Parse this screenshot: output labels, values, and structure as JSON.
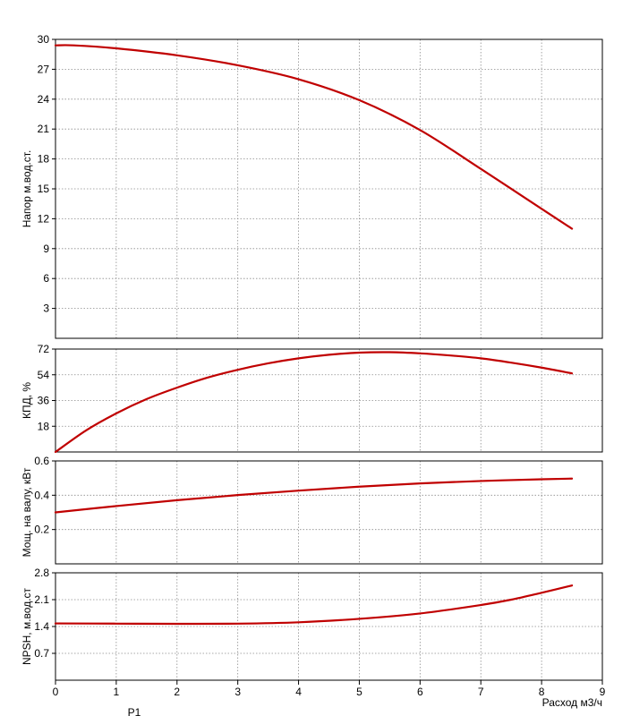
{
  "chart_data": [
    {
      "type": "line",
      "ylabel": "Напор м.вод.ст.",
      "xlim": [
        0,
        9
      ],
      "ylim": [
        0,
        30
      ],
      "yticks": [
        "3",
        "6",
        "9",
        "12",
        "15",
        "18",
        "21",
        "24",
        "27",
        "30"
      ],
      "grid": true,
      "color": "#c00000",
      "x": [
        0,
        0.3,
        1,
        2,
        3,
        4,
        5,
        6,
        7,
        8,
        8.5
      ],
      "y": [
        29.4,
        29.4,
        29.1,
        28.4,
        27.4,
        26.0,
        23.9,
        20.9,
        17.0,
        13.0,
        11.0
      ]
    },
    {
      "type": "line",
      "ylabel": "КПД, %",
      "xlim": [
        0,
        9
      ],
      "ylim": [
        0,
        72
      ],
      "yticks": [
        "18",
        "36",
        "54",
        "72"
      ],
      "grid": true,
      "color": "#c00000",
      "x": [
        0,
        0.5,
        1,
        1.5,
        2,
        2.5,
        3,
        3.5,
        4,
        4.5,
        5,
        5.5,
        6,
        6.5,
        7,
        7.5,
        8,
        8.5
      ],
      "y": [
        0,
        15,
        27,
        37,
        45,
        52,
        57.5,
        62,
        65.5,
        68,
        69.5,
        69.8,
        69,
        67.5,
        65.5,
        62.5,
        59,
        55
      ]
    },
    {
      "type": "line",
      "ylabel": "Мощ. на валу, кВт",
      "xlim": [
        0,
        9
      ],
      "ylim": [
        0,
        0.6
      ],
      "yticks": [
        "0.2",
        "0.4",
        "0.6"
      ],
      "grid": true,
      "color": "#c00000",
      "x": [
        0,
        1,
        2,
        3,
        4,
        5,
        6,
        7,
        8,
        8.5
      ],
      "y": [
        0.3,
        0.337,
        0.371,
        0.401,
        0.427,
        0.45,
        0.469,
        0.483,
        0.493,
        0.497
      ]
    },
    {
      "type": "line",
      "ylabel": "NPSH, м.вод.ст",
      "xlim": [
        0,
        9
      ],
      "ylim": [
        0,
        2.8
      ],
      "yticks": [
        "0.7",
        "1.4",
        "2.1",
        "2.8"
      ],
      "grid": true,
      "color": "#c00000",
      "x": [
        0,
        1,
        2,
        3,
        4,
        5,
        6,
        7,
        7.5,
        8,
        8.5
      ],
      "y": [
        1.48,
        1.475,
        1.47,
        1.475,
        1.51,
        1.6,
        1.74,
        1.96,
        2.1,
        2.28,
        2.47
      ]
    }
  ],
  "x_axis": {
    "label": "Расход м3/ч",
    "ticks": [
      "0",
      "1",
      "2",
      "3",
      "4",
      "5",
      "6",
      "7",
      "8",
      "9"
    ]
  },
  "footer_text": "P1"
}
